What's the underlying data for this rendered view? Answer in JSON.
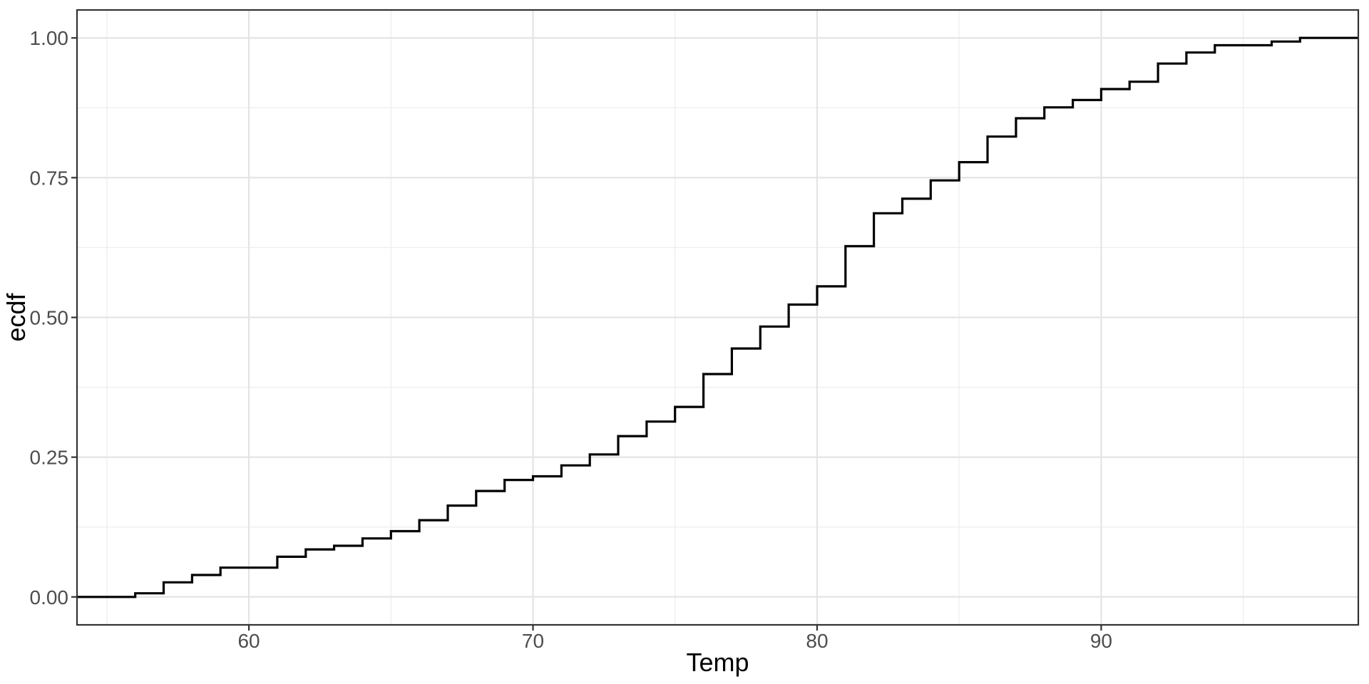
{
  "figure": {
    "background": "#FFFFFF"
  },
  "chart_data": {
    "type": "line",
    "style": "ecdf-step",
    "title": "",
    "xlabel": "Temp",
    "ylabel": "ecdf",
    "xlim": [
      53.95,
      99.05
    ],
    "ylim": [
      -0.05,
      1.05
    ],
    "x_ticks": {
      "values": [
        60,
        70,
        80,
        90
      ],
      "labels": [
        "60",
        "70",
        "80",
        "90"
      ]
    },
    "y_ticks": {
      "values": [
        0,
        0.25,
        0.5,
        0.75,
        1
      ],
      "labels": [
        "0.00",
        "0.25",
        "0.50",
        "0.75",
        "1.00"
      ]
    },
    "x_minor_gridlines": [
      55,
      65,
      75,
      85,
      95
    ],
    "y_minor_gridlines": [
      0.125,
      0.375,
      0.625,
      0.875
    ],
    "grid": "major+minor",
    "legend": "none",
    "pad_ends": true,
    "series": [
      {
        "name": "ecdf",
        "points": [
          [
            56,
            0.0065
          ],
          [
            57,
            0.0261
          ],
          [
            58,
            0.0392
          ],
          [
            59,
            0.0523
          ],
          [
            61,
            0.0719
          ],
          [
            62,
            0.085
          ],
          [
            63,
            0.0915
          ],
          [
            64,
            0.1046
          ],
          [
            65,
            0.1176
          ],
          [
            66,
            0.1373
          ],
          [
            67,
            0.1634
          ],
          [
            68,
            0.1895
          ],
          [
            69,
            0.2092
          ],
          [
            70,
            0.2157
          ],
          [
            71,
            0.2353
          ],
          [
            72,
            0.2549
          ],
          [
            73,
            0.2876
          ],
          [
            74,
            0.3137
          ],
          [
            75,
            0.3399
          ],
          [
            76,
            0.3987
          ],
          [
            77,
            0.4444
          ],
          [
            78,
            0.4837
          ],
          [
            79,
            0.5229
          ],
          [
            80,
            0.5556
          ],
          [
            81,
            0.6275
          ],
          [
            82,
            0.6863
          ],
          [
            83,
            0.7124
          ],
          [
            84,
            0.7451
          ],
          [
            85,
            0.7778
          ],
          [
            86,
            0.8235
          ],
          [
            87,
            0.8562
          ],
          [
            88,
            0.8758
          ],
          [
            89,
            0.8889
          ],
          [
            90,
            0.9085
          ],
          [
            91,
            0.9216
          ],
          [
            92,
            0.9542
          ],
          [
            93,
            0.9739
          ],
          [
            94,
            0.9869
          ],
          [
            96,
            0.9935
          ],
          [
            97,
            1.0
          ]
        ]
      }
    ],
    "colors": {
      "line": "#000000",
      "panel_background": "#FFFFFF",
      "panel_border": "#333333",
      "grid_major": "#E4E4E4",
      "grid_minor": "#EFEFEF",
      "tick_mark": "#333333",
      "tick_label": "#4D4D4D",
      "axis_title": "#000000"
    }
  }
}
